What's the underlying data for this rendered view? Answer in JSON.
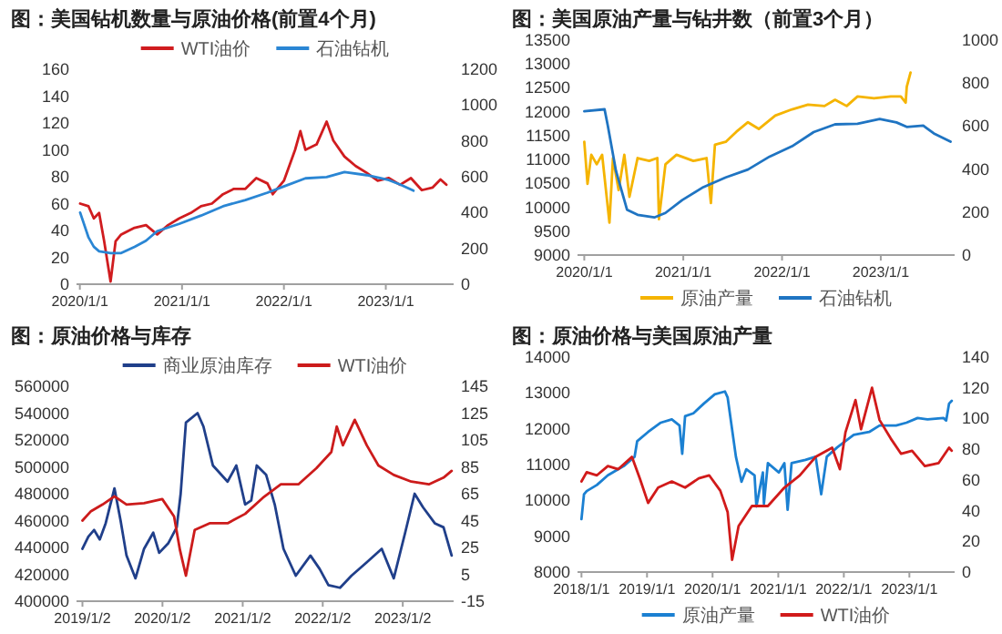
{
  "chart_data": [
    {
      "type": "line",
      "title": "图：美国钻机数量与原油价格(前置4个月)",
      "legend": "top",
      "xlim": [
        "2019-12-20",
        "2023-09-01"
      ],
      "xticks": [
        {
          "value": "2020-01-01",
          "label": "2020/1/1"
        },
        {
          "value": "2021-01-01",
          "label": "2021/1/1"
        },
        {
          "value": "2022-01-01",
          "label": "2022/1/1"
        },
        {
          "value": "2023-01-01",
          "label": "2023/1/1"
        }
      ],
      "ylim": [
        0,
        160
      ],
      "yticks": [
        0,
        20,
        40,
        60,
        80,
        100,
        120,
        140,
        160
      ],
      "y2lim": [
        0,
        1200
      ],
      "y2ticks": [
        0,
        200,
        400,
        600,
        800,
        1000,
        1200
      ],
      "series": [
        {
          "name": "WTI油价",
          "color": "#d01c1f",
          "x": [
            "2020-01-02",
            "2020-02-01",
            "2020-02-20",
            "2020-03-10",
            "2020-03-28",
            "2020-04-20",
            "2020-05-08",
            "2020-05-28",
            "2020-07-15",
            "2020-08-25",
            "2020-10-04",
            "2020-11-12",
            "2020-12-22",
            "2021-02-01",
            "2021-03-10",
            "2021-04-18",
            "2021-05-28",
            "2021-07-06",
            "2021-08-16",
            "2021-09-24",
            "2021-11-03",
            "2021-11-22",
            "2022-01-01",
            "2022-02-10",
            "2022-03-01",
            "2022-03-19",
            "2022-04-28",
            "2022-06-03",
            "2022-06-27",
            "2022-08-06",
            "2022-09-15",
            "2022-10-24",
            "2022-12-03",
            "2023-01-12",
            "2023-02-21",
            "2023-04-01",
            "2023-05-10",
            "2023-06-18",
            "2023-07-16",
            "2023-08-06"
          ],
          "values": [
            60,
            58,
            49,
            53,
            32,
            2,
            32,
            37,
            42,
            44,
            37,
            44,
            49,
            53,
            58,
            60,
            67,
            71,
            71,
            79,
            75,
            67,
            77,
            100,
            114,
            100,
            104,
            121,
            107,
            95,
            88,
            83,
            77,
            79,
            74,
            79,
            70,
            72,
            78,
            74
          ]
        },
        {
          "name": "石油钻机",
          "color": "#2a86d4",
          "axis": "y2",
          "x": [
            "2020-01-02",
            "2020-02-01",
            "2020-02-20",
            "2020-03-10",
            "2020-04-20",
            "2020-05-28",
            "2020-07-15",
            "2020-08-25",
            "2020-10-04",
            "2020-12-22",
            "2021-03-10",
            "2021-05-28",
            "2021-08-16",
            "2021-11-03",
            "2022-01-01",
            "2022-03-19",
            "2022-06-03",
            "2022-08-06",
            "2022-10-24",
            "2023-01-12",
            "2023-02-21",
            "2023-04-10"
          ],
          "values": [
            400,
            261,
            209,
            184,
            174,
            174,
            209,
            243,
            296,
            337,
            383,
            435,
            470,
            511,
            546,
            591,
            598,
            626,
            609,
            581,
            557,
            522
          ]
        }
      ]
    },
    {
      "type": "line",
      "title": "图：美国原油产量与钻井数（前置3个月）",
      "legend": "bottom",
      "xlim": [
        "2019-12-07",
        "2023-10-01"
      ],
      "xticks": [
        {
          "value": "2020-01-01",
          "label": "2020/1/1"
        },
        {
          "value": "2021-01-01",
          "label": "2021/1/1"
        },
        {
          "value": "2022-01-01",
          "label": "2022/1/1"
        },
        {
          "value": "2023-01-01",
          "label": "2023/1/1"
        }
      ],
      "ylim": [
        9000,
        13500
      ],
      "yticks": [
        9000,
        9500,
        10000,
        10500,
        11000,
        11500,
        12000,
        12500,
        13000,
        13500
      ],
      "y2lim": [
        0,
        1000
      ],
      "y2ticks": [
        0,
        200,
        400,
        600,
        800,
        1000
      ],
      "series": [
        {
          "name": "原油产量",
          "color": "#f5b400",
          "x": [
            "2020-01-01",
            "2020-01-13",
            "2020-01-27",
            "2020-02-16",
            "2020-03-07",
            "2020-04-03",
            "2020-04-16",
            "2020-05-07",
            "2020-05-28",
            "2020-06-16",
            "2020-07-16",
            "2020-08-28",
            "2020-09-27",
            "2020-10-03",
            "2020-10-27",
            "2020-12-07",
            "2021-02-07",
            "2021-03-28",
            "2021-04-13",
            "2021-04-28",
            "2021-06-07",
            "2021-07-16",
            "2021-08-28",
            "2021-10-07",
            "2021-12-07",
            "2022-02-07",
            "2022-04-07",
            "2022-06-07",
            "2022-07-16",
            "2022-08-28",
            "2022-10-07",
            "2022-12-07",
            "2023-02-07",
            "2023-03-16",
            "2023-04-03",
            "2023-04-07",
            "2023-04-21"
          ],
          "values": [
            11370,
            10490,
            11100,
            10900,
            11100,
            9680,
            11030,
            10360,
            11100,
            10220,
            11030,
            10970,
            11030,
            9750,
            10900,
            11100,
            10970,
            11030,
            10090,
            11310,
            11370,
            11580,
            11780,
            11640,
            11920,
            12050,
            12150,
            12120,
            12250,
            12120,
            12320,
            12280,
            12320,
            12320,
            12190,
            12520,
            12820
          ]
        },
        {
          "name": "石油钻机",
          "color": "#1f74c2",
          "axis": "y2",
          "x": [
            "2020-01-01",
            "2020-03-16",
            "2020-03-28",
            "2020-04-27",
            "2020-06-07",
            "2020-07-16",
            "2020-09-16",
            "2020-10-27",
            "2020-12-28",
            "2021-03-16",
            "2021-06-07",
            "2021-08-28",
            "2021-11-16",
            "2022-02-07",
            "2022-04-28",
            "2022-07-16",
            "2022-10-07",
            "2022-12-28",
            "2023-02-28",
            "2023-04-07",
            "2023-06-07",
            "2023-07-16",
            "2023-09-16"
          ],
          "values": [
            669,
            678,
            602,
            392,
            211,
            187,
            175,
            196,
            256,
            316,
            361,
            398,
            458,
            506,
            572,
            608,
            611,
            633,
            617,
            596,
            602,
            566,
            527
          ]
        }
      ]
    },
    {
      "type": "line",
      "title": "图：原油价格与库存",
      "legend": "top",
      "xlim": [
        "2018-12-06",
        "2023-08-22"
      ],
      "xticks": [
        {
          "value": "2019-01-02",
          "label": "2019/1/2"
        },
        {
          "value": "2020-01-02",
          "label": "2020/1/2"
        },
        {
          "value": "2021-01-02",
          "label": "2021/1/2"
        },
        {
          "value": "2022-01-02",
          "label": "2022/1/2"
        },
        {
          "value": "2023-01-02",
          "label": "2023/1/2"
        }
      ],
      "ylim": [
        400000,
        560000
      ],
      "yticks": [
        400000,
        420000,
        440000,
        460000,
        480000,
        500000,
        520000,
        540000,
        560000
      ],
      "y2lim": [
        -15,
        145
      ],
      "y2ticks": [
        -15,
        5,
        25,
        45,
        65,
        85,
        105,
        125,
        145
      ],
      "series": [
        {
          "name": "商业原油库存",
          "color": "#203f8a",
          "x": [
            "2019-01-02",
            "2019-01-29",
            "2019-02-24",
            "2019-03-22",
            "2019-04-18",
            "2019-05-28",
            "2019-06-25",
            "2019-07-22",
            "2019-09-01",
            "2019-10-10",
            "2019-11-21",
            "2019-12-18",
            "2020-01-28",
            "2020-03-07",
            "2020-03-25",
            "2020-04-18",
            "2020-06-10",
            "2020-07-07",
            "2020-08-19",
            "2020-10-25",
            "2020-12-04",
            "2021-01-13",
            "2021-02-10",
            "2021-03-07",
            "2021-04-19",
            "2021-05-28",
            "2021-07-07",
            "2021-09-01",
            "2021-11-07",
            "2021-12-19",
            "2022-01-28",
            "2022-03-22",
            "2022-05-13",
            "2022-07-22",
            "2022-09-28",
            "2022-11-22",
            "2023-01-13",
            "2023-02-25",
            "2023-04-04",
            "2023-05-28",
            "2023-07-07",
            "2023-08-13"
          ],
          "values": [
            439000,
            448000,
            453000,
            446000,
            458000,
            484000,
            460000,
            434000,
            417000,
            439000,
            451000,
            436000,
            443000,
            455000,
            480000,
            533000,
            540000,
            530000,
            501000,
            489000,
            501000,
            472000,
            475000,
            501000,
            494000,
            472000,
            439000,
            419000,
            434000,
            424000,
            412000,
            410000,
            419000,
            429000,
            439000,
            417000,
            451000,
            480000,
            470000,
            458000,
            455000,
            434000
          ]
        },
        {
          "name": "WTI油价",
          "color": "#cc1b1b",
          "axis": "y2",
          "x": [
            "2019-01-02",
            "2019-02-10",
            "2019-04-04",
            "2019-05-28",
            "2019-07-22",
            "2019-10-10",
            "2020-01-01",
            "2020-02-24",
            "2020-03-22",
            "2020-04-18",
            "2020-05-28",
            "2020-08-04",
            "2020-10-25",
            "2021-01-13",
            "2021-04-04",
            "2021-06-25",
            "2021-09-13",
            "2021-12-04",
            "2022-02-10",
            "2022-03-07",
            "2022-04-04",
            "2022-05-28",
            "2022-07-22",
            "2022-09-13",
            "2022-11-22",
            "2023-02-10",
            "2023-05-01",
            "2023-07-07",
            "2023-08-13"
          ],
          "values": [
            45,
            52,
            57,
            63,
            57,
            58,
            61,
            48,
            23,
            4,
            38,
            43,
            43,
            50,
            62,
            72,
            72,
            84,
            96,
            115,
            101,
            120,
            101,
            86,
            79,
            74,
            72,
            77,
            82
          ]
        }
      ]
    },
    {
      "type": "line",
      "title": "图：原油价格与美国原油产量",
      "legend": "bottom",
      "xlim": [
        "2017-12-10",
        "2023-09-10"
      ],
      "xticks": [
        {
          "value": "2018-01-01",
          "label": "2018/1/1"
        },
        {
          "value": "2019-01-01",
          "label": "2019/1/1"
        },
        {
          "value": "2020-01-01",
          "label": "2020/1/1"
        },
        {
          "value": "2021-01-01",
          "label": "2021/1/1"
        },
        {
          "value": "2022-01-01",
          "label": "2022/1/1"
        },
        {
          "value": "2023-01-01",
          "label": "2023/1/1"
        }
      ],
      "ylim": [
        8000,
        14000
      ],
      "yticks": [
        8000,
        9000,
        10000,
        11000,
        12000,
        13000,
        14000
      ],
      "y2lim": [
        0,
        140
      ],
      "y2ticks": [
        0,
        20,
        40,
        60,
        80,
        100,
        120,
        140
      ],
      "series": [
        {
          "name": "原油产量",
          "color": "#1b80d2",
          "x": [
            "2018-01-01",
            "2018-01-15",
            "2018-01-30",
            "2018-03-28",
            "2018-05-28",
            "2018-08-25",
            "2018-10-24",
            "2018-11-07",
            "2019-01-07",
            "2019-03-19",
            "2019-05-19",
            "2019-07-01",
            "2019-07-16",
            "2019-08-01",
            "2019-09-16",
            "2019-11-13",
            "2020-01-13",
            "2020-03-10",
            "2020-03-25",
            "2020-05-10",
            "2020-06-10",
            "2020-07-07",
            "2020-08-22",
            "2020-09-01",
            "2020-10-07",
            "2020-10-13",
            "2020-11-04",
            "2021-01-04",
            "2021-02-04",
            "2021-02-22",
            "2021-03-16",
            "2021-06-01",
            "2021-07-28",
            "2021-08-28",
            "2021-09-28",
            "2021-11-25",
            "2022-02-25",
            "2022-05-22",
            "2022-07-19",
            "2022-10-19",
            "2022-12-16",
            "2023-02-16",
            "2023-04-13",
            "2023-07-10",
            "2023-07-25",
            "2023-08-10",
            "2023-08-25"
          ],
          "values": [
            9480,
            10170,
            10260,
            10430,
            10700,
            10960,
            11220,
            11650,
            11910,
            12170,
            12260,
            12090,
            11300,
            12350,
            12430,
            12700,
            12960,
            13040,
            12870,
            11220,
            10520,
            10870,
            10700,
            9830,
            10780,
            9910,
            11040,
            10780,
            11040,
            9740,
            11040,
            11130,
            11220,
            10170,
            11220,
            11480,
            11830,
            11910,
            12090,
            12090,
            12170,
            12300,
            12260,
            12300,
            12230,
            12700,
            12780
          ]
        },
        {
          "name": "WTI油价",
          "color": "#d11a1a",
          "axis": "y2",
          "x": [
            "2018-01-01",
            "2018-01-30",
            "2018-03-28",
            "2018-05-28",
            "2018-07-25",
            "2018-10-09",
            "2018-11-22",
            "2019-01-07",
            "2019-03-04",
            "2019-05-19",
            "2019-08-01",
            "2019-10-16",
            "2019-12-13",
            "2020-02-13",
            "2020-03-25",
            "2020-04-19",
            "2020-05-25",
            "2020-08-07",
            "2020-11-04",
            "2021-02-04",
            "2021-05-01",
            "2021-07-28",
            "2021-10-28",
            "2021-12-10",
            "2022-01-10",
            "2022-03-07",
            "2022-04-07",
            "2022-06-07",
            "2022-07-19",
            "2022-09-19",
            "2022-11-16",
            "2023-01-16",
            "2023-03-28",
            "2023-06-13",
            "2023-08-10",
            "2023-08-25"
          ],
          "values": [
            59,
            65,
            63,
            69,
            67,
            75,
            61,
            45,
            55,
            59,
            55,
            61,
            63,
            53,
            39,
            8,
            30,
            43,
            43,
            55,
            63,
            75,
            81,
            67,
            91,
            112,
            93,
            120,
            99,
            87,
            77,
            79,
            69,
            71,
            81,
            79
          ]
        }
      ]
    }
  ]
}
